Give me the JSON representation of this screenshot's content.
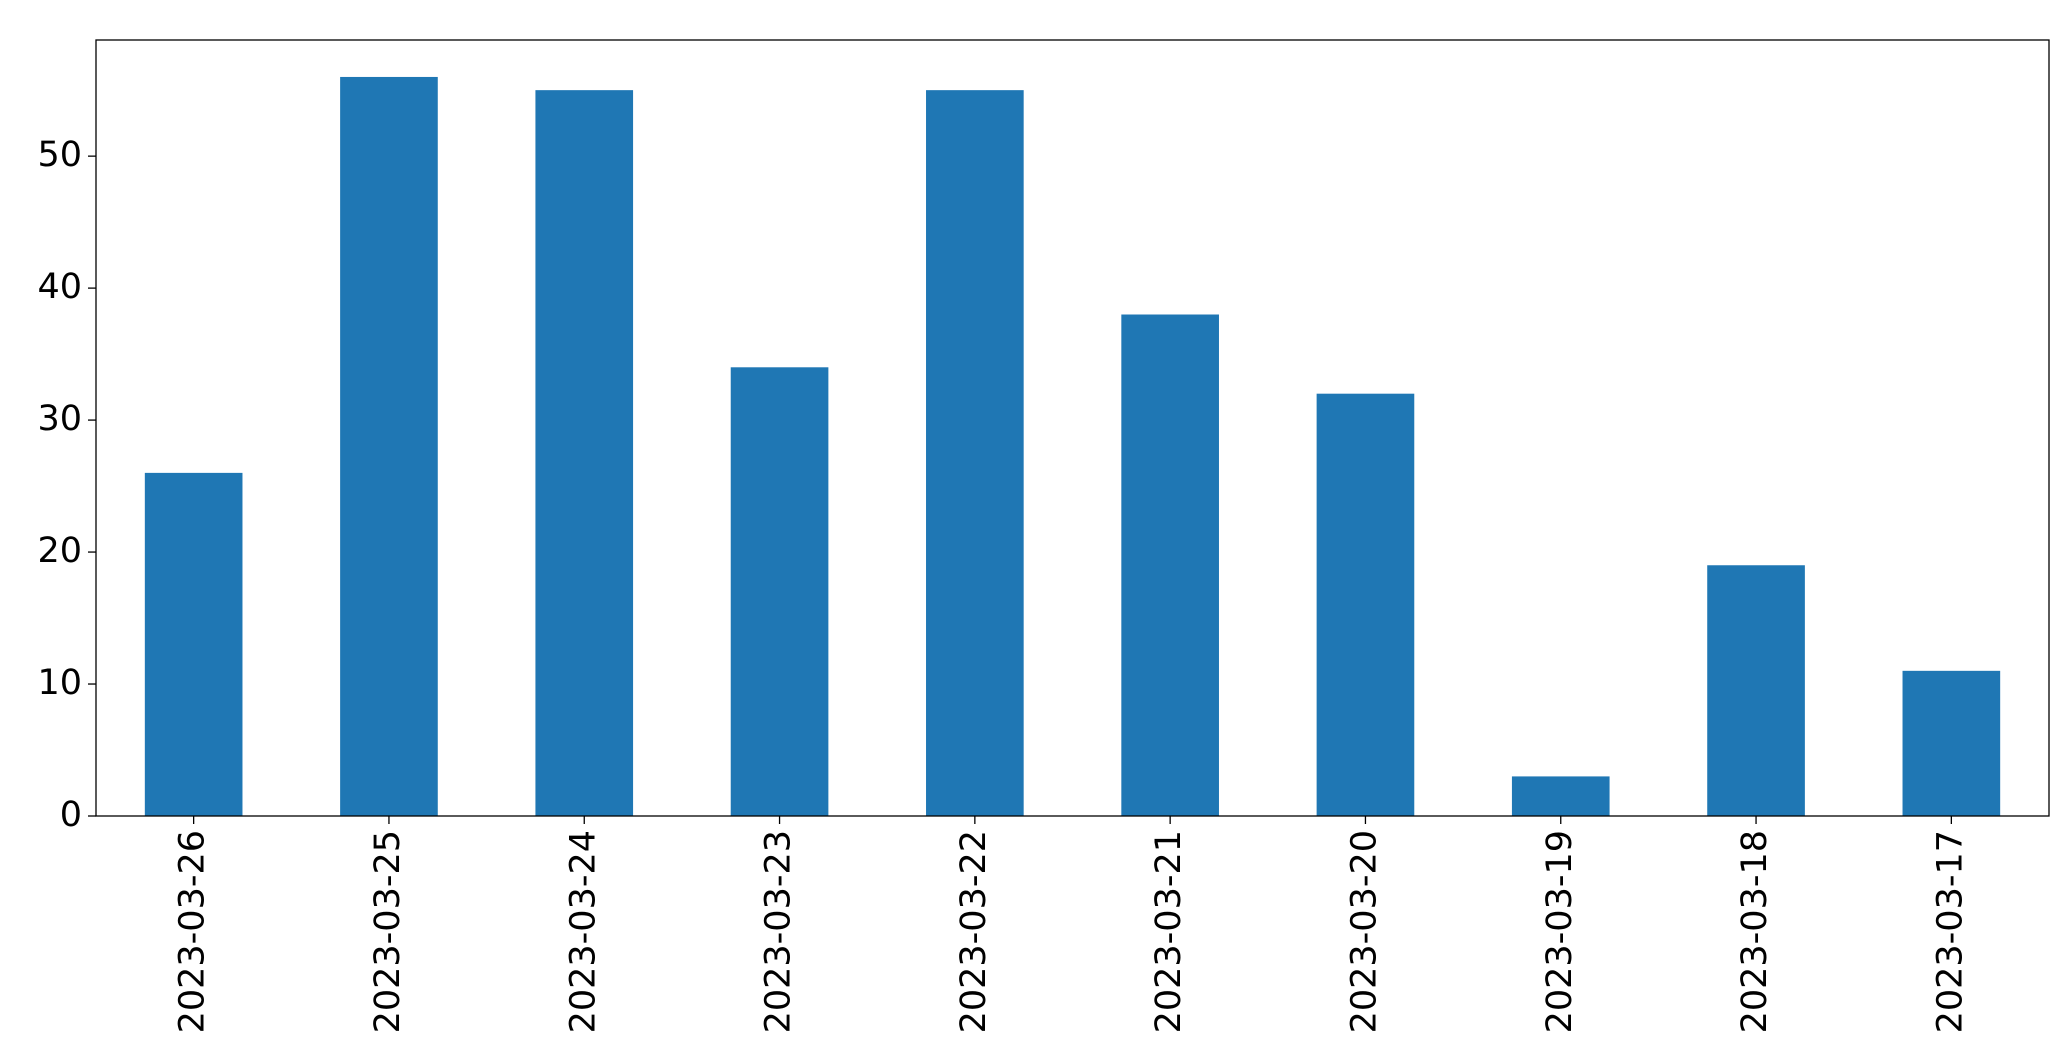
{
  "chart_data": {
    "type": "bar",
    "categories": [
      "2023-03-26",
      "2023-03-25",
      "2023-03-24",
      "2023-03-23",
      "2023-03-22",
      "2023-03-21",
      "2023-03-20",
      "2023-03-19",
      "2023-03-18",
      "2023-03-17"
    ],
    "values": [
      26,
      56,
      55,
      34,
      55,
      38,
      32,
      3,
      19,
      11
    ],
    "color": "#1f77b4",
    "ylim": [
      0,
      58.8
    ],
    "yticks": [
      0,
      10,
      20,
      30,
      40,
      50
    ],
    "grid": false
  }
}
